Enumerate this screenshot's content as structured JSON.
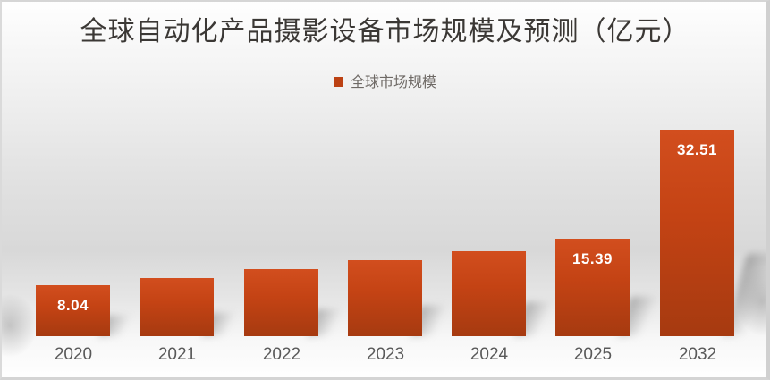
{
  "chart_data": {
    "type": "bar",
    "title": "全球自动化产品摄影设备市场规模及预测（亿元）",
    "legend": {
      "label": "全球市场规模",
      "position": "top-center",
      "swatch_color": "#BC4113"
    },
    "categories": [
      "2020",
      "2021",
      "2022",
      "2023",
      "2024",
      "2025",
      "2032"
    ],
    "series": [
      {
        "name": "全球市场规模",
        "values": [
          8.04,
          9.2,
          10.5,
          12.0,
          13.4,
          15.39,
          32.51
        ]
      }
    ],
    "bars": [
      {
        "category": "2020",
        "value": 8.04,
        "data_label": "8.04"
      },
      {
        "category": "2021",
        "value": 9.2,
        "data_label": ""
      },
      {
        "category": "2022",
        "value": 10.5,
        "data_label": ""
      },
      {
        "category": "2023",
        "value": 12.0,
        "data_label": ""
      },
      {
        "category": "2024",
        "value": 13.4,
        "data_label": ""
      },
      {
        "category": "2025",
        "value": 15.39,
        "data_label": "15.39"
      },
      {
        "category": "2032",
        "value": 32.51,
        "data_label": "32.51"
      }
    ],
    "xlabel": "",
    "ylabel": "",
    "ylim": [
      0,
      34
    ],
    "grid": false,
    "y_axis_visible": false,
    "x_axis_line_visible": false,
    "bar_color_top": "#D24E1E",
    "bar_color_mid": "#C44314",
    "bar_color_bottom": "#A63A10",
    "data_label_color": "#FFFFFF",
    "category_label_color": "#595959",
    "title_color": "#3B3835"
  }
}
